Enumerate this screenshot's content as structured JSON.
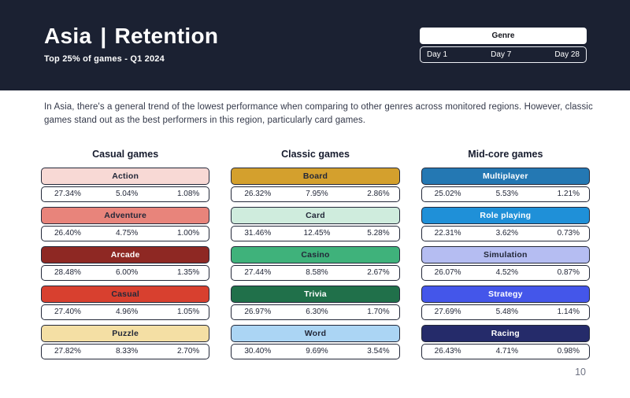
{
  "header": {
    "background": "#1b2132",
    "title_region": "Asia",
    "title_divider": "|",
    "title_metric": "Retention",
    "subtitle": "Top 25% of games - Q1 2024",
    "legend": {
      "genre_label": "Genre",
      "days": [
        "Day 1",
        "Day 7",
        "Day 28"
      ]
    }
  },
  "description": "In Asia, there's a general trend of the lowest performance when comparing to other genres across monitored regions. However, classic games stand out as the best performers in this region, particularly card games.",
  "columns": [
    {
      "title": "Casual games",
      "cards": [
        {
          "genre": "Action",
          "fill": "#f8d9d5",
          "text_color": "#232839",
          "values": [
            "27.34%",
            "5.04%",
            "1.08%"
          ]
        },
        {
          "genre": "Adventure",
          "fill": "#e8847b",
          "text_color": "#232839",
          "values": [
            "26.40%",
            "4.75%",
            "1.00%"
          ]
        },
        {
          "genre": "Arcade",
          "fill": "#8e2823",
          "text_color": "#ffffff",
          "values": [
            "28.48%",
            "6.00%",
            "1.35%"
          ]
        },
        {
          "genre": "Casual",
          "fill": "#d8402f",
          "text_color": "#232839",
          "values": [
            "27.40%",
            "4.96%",
            "1.05%"
          ]
        },
        {
          "genre": "Puzzle",
          "fill": "#f4dfa4",
          "text_color": "#232839",
          "values": [
            "27.82%",
            "8.33%",
            "2.70%"
          ]
        }
      ]
    },
    {
      "title": "Classic games",
      "cards": [
        {
          "genre": "Board",
          "fill": "#d4a02d",
          "text_color": "#232839",
          "values": [
            "26.32%",
            "7.95%",
            "2.86%"
          ]
        },
        {
          "genre": "Card",
          "fill": "#cfecdd",
          "text_color": "#232839",
          "values": [
            "31.46%",
            "12.45%",
            "5.28%"
          ]
        },
        {
          "genre": "Casino",
          "fill": "#3fb27b",
          "text_color": "#232839",
          "values": [
            "27.44%",
            "8.58%",
            "2.67%"
          ]
        },
        {
          "genre": "Trivia",
          "fill": "#20704a",
          "text_color": "#ffffff",
          "values": [
            "26.97%",
            "6.30%",
            "1.70%"
          ]
        },
        {
          "genre": "Word",
          "fill": "#abd5f4",
          "text_color": "#232839",
          "values": [
            "30.40%",
            "9.69%",
            "3.54%"
          ]
        }
      ]
    },
    {
      "title": "Mid-core games",
      "cards": [
        {
          "genre": "Multiplayer",
          "fill": "#2478b3",
          "text_color": "#ffffff",
          "values": [
            "25.02%",
            "5.53%",
            "1.21%"
          ]
        },
        {
          "genre": "Role playing",
          "fill": "#1f90d8",
          "text_color": "#ffffff",
          "values": [
            "22.31%",
            "3.62%",
            "0.73%"
          ]
        },
        {
          "genre": "Simulation",
          "fill": "#b5bdf2",
          "text_color": "#232839",
          "values": [
            "26.07%",
            "4.52%",
            "0.87%"
          ]
        },
        {
          "genre": "Strategy",
          "fill": "#4456ea",
          "text_color": "#ffffff",
          "values": [
            "27.69%",
            "5.48%",
            "1.14%"
          ]
        },
        {
          "genre": "Racing",
          "fill": "#252b6a",
          "text_color": "#ffffff",
          "values": [
            "26.43%",
            "4.71%",
            "0.98%"
          ]
        }
      ]
    }
  ],
  "page_number": "10"
}
